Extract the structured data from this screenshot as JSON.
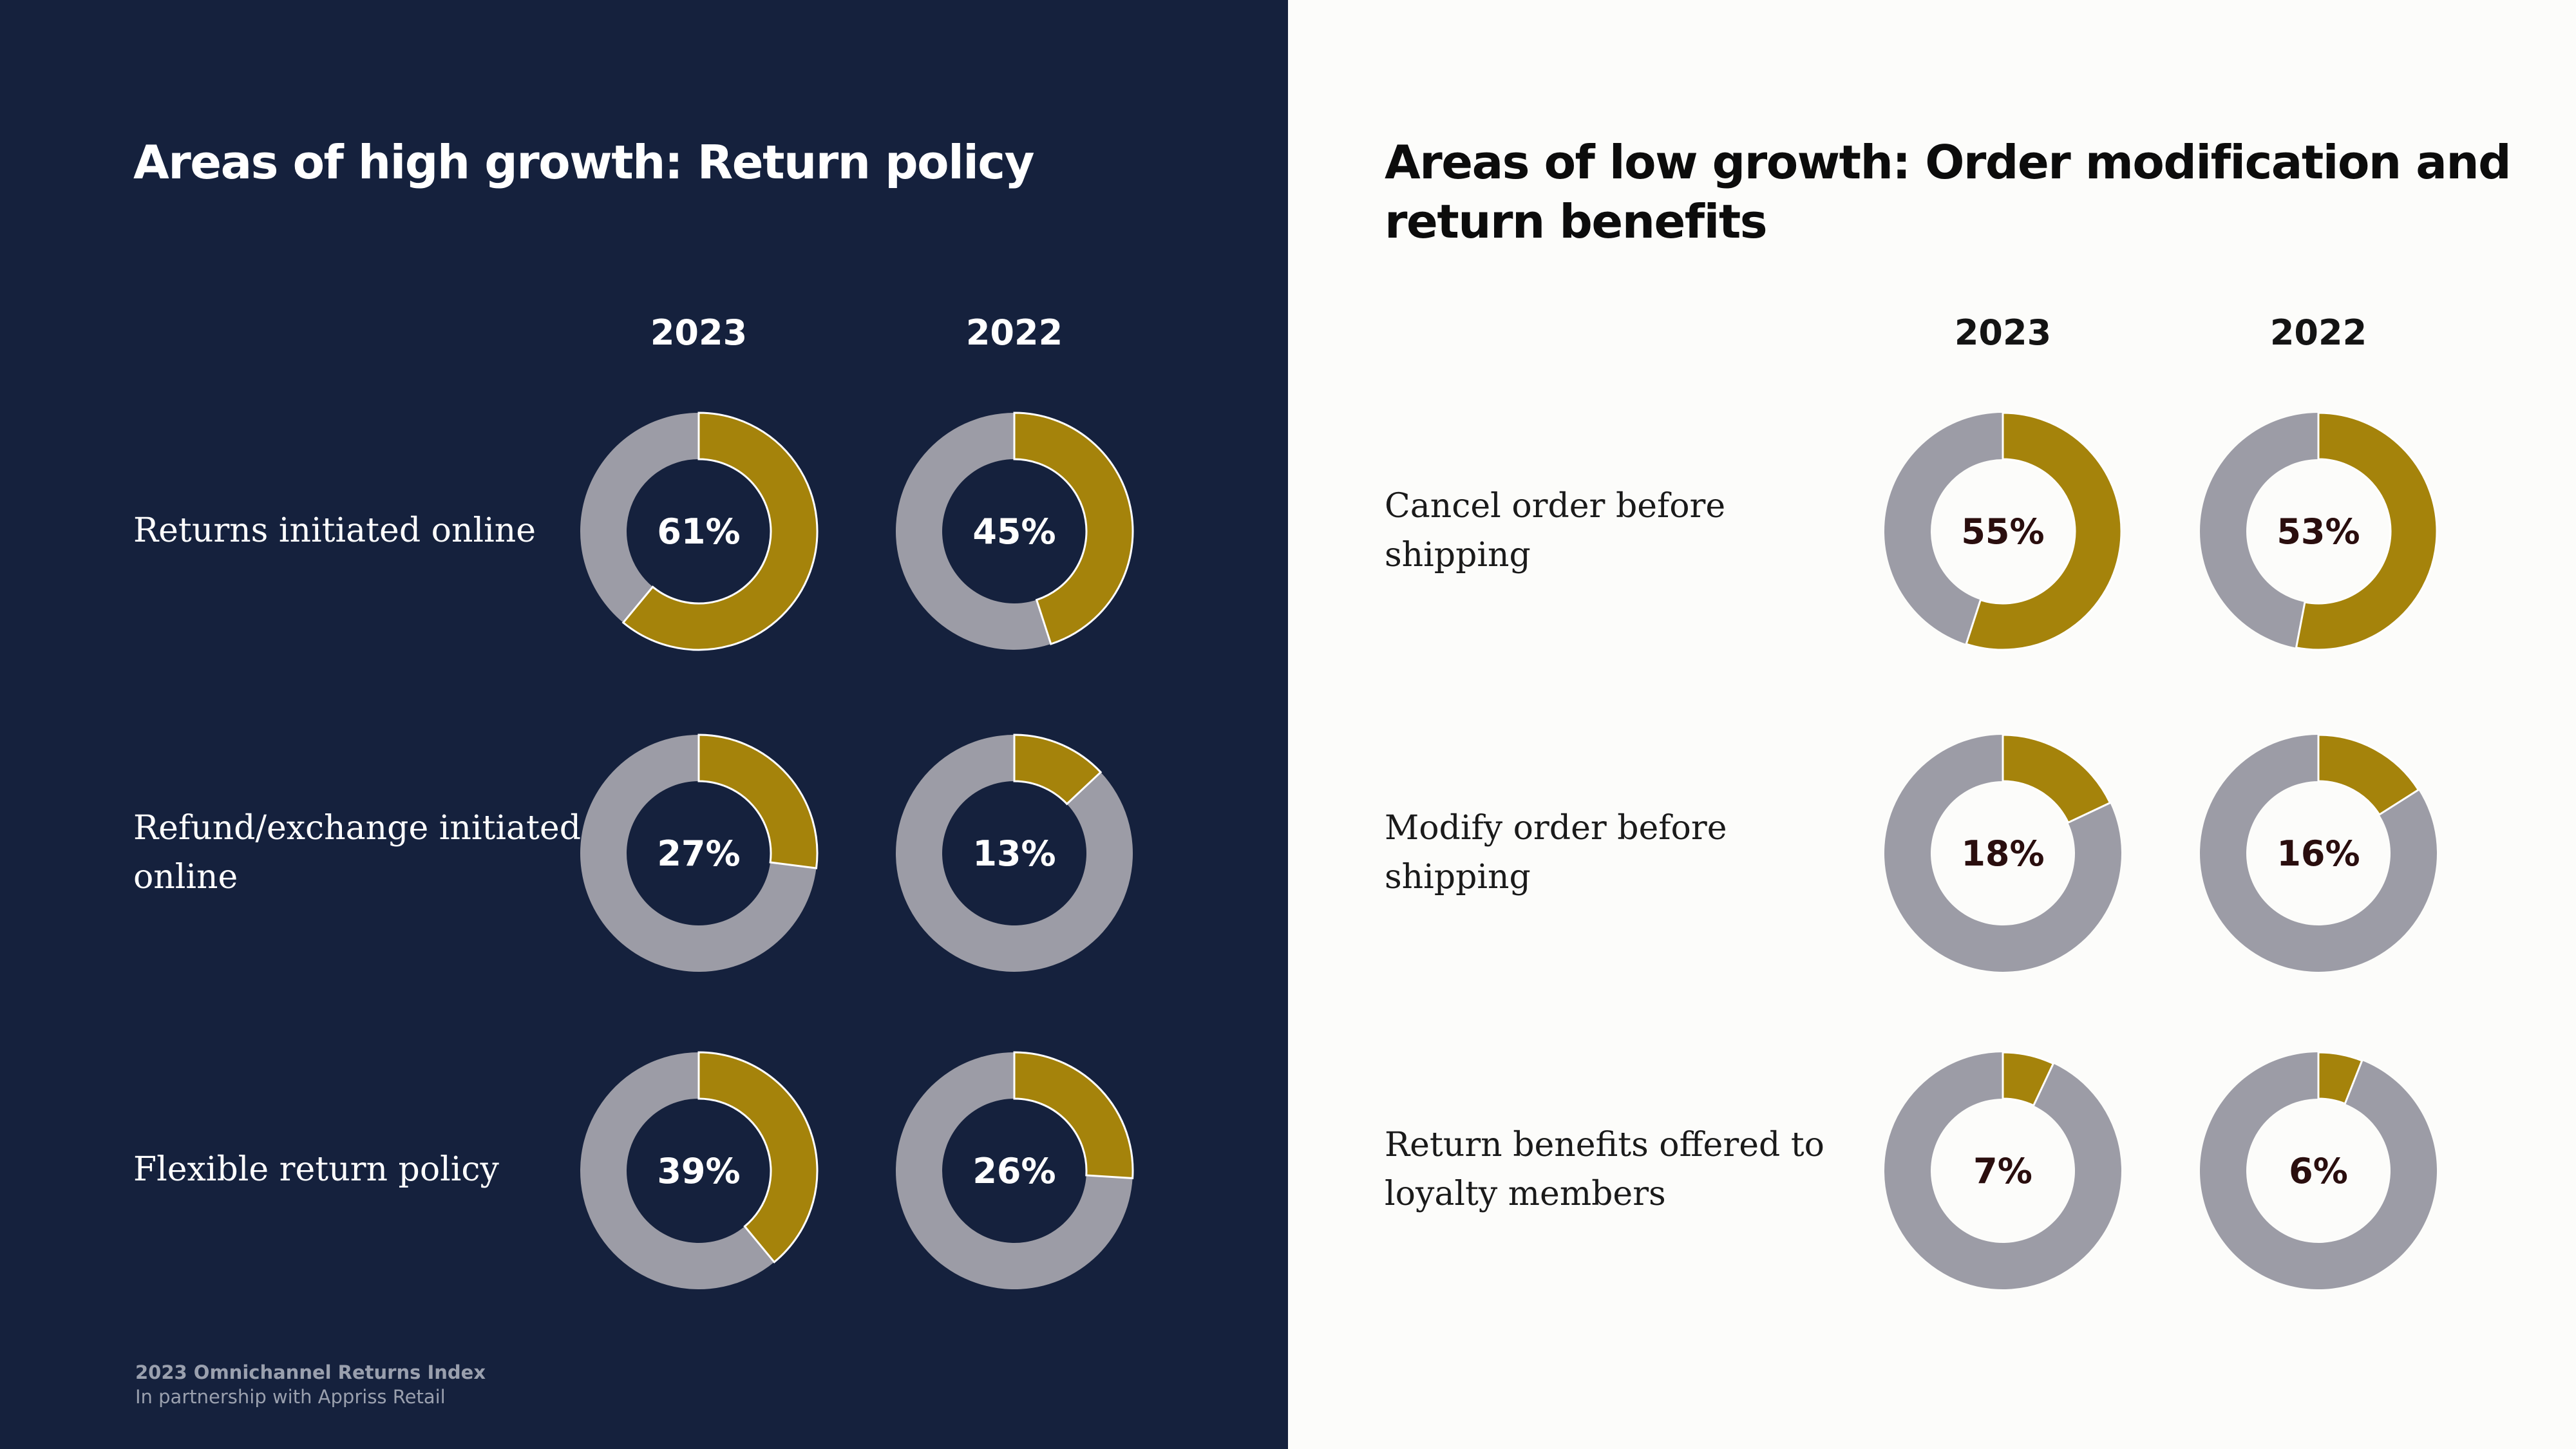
{
  "colors": {
    "left_background": "#15213d",
    "right_background": "#fcfcfa",
    "highlight": "#a5830b",
    "remainder": "#9c9ca6"
  },
  "left_panel": {
    "title": "Areas of high growth: Return policy",
    "years": [
      "2023",
      "2022"
    ],
    "rows": [
      {
        "label": "Returns initiated online",
        "values": [
          "61%",
          "45%"
        ]
      },
      {
        "label": "Refund/exchange initiated online",
        "values": [
          "27%",
          "13%"
        ]
      },
      {
        "label": "Flexible return policy",
        "values": [
          "39%",
          "26%"
        ]
      }
    ],
    "footer": {
      "title": "2023 Omnichannel Returns Index",
      "subtitle": "In partnership with Appriss Retail"
    }
  },
  "right_panel": {
    "title": "Areas of low growth: Order modification and return benefits",
    "years": [
      "2023",
      "2022"
    ],
    "rows": [
      {
        "label": "Cancel order before shipping",
        "values": [
          "55%",
          "53%"
        ]
      },
      {
        "label": "Modify order before shipping",
        "values": [
          "18%",
          "16%"
        ]
      },
      {
        "label": "Return benefits offered to loyalty members",
        "values": [
          "7%",
          "6%"
        ]
      }
    ]
  },
  "chart_data": [
    {
      "type": "pie",
      "title": "Areas of high growth: Return policy",
      "categories": [
        "Returns initiated online",
        "Refund/exchange initiated online",
        "Flexible return policy"
      ],
      "series": [
        {
          "name": "2023",
          "values": [
            61,
            27,
            39
          ]
        },
        {
          "name": "2022",
          "values": [
            45,
            13,
            26
          ]
        }
      ]
    },
    {
      "type": "pie",
      "title": "Areas of low growth: Order modification and return benefits",
      "categories": [
        "Cancel order before shipping",
        "Modify order before shipping",
        "Return benefits offered to loyalty members"
      ],
      "series": [
        {
          "name": "2023",
          "values": [
            55,
            18,
            7
          ]
        },
        {
          "name": "2022",
          "values": [
            53,
            16,
            6
          ]
        }
      ]
    }
  ]
}
